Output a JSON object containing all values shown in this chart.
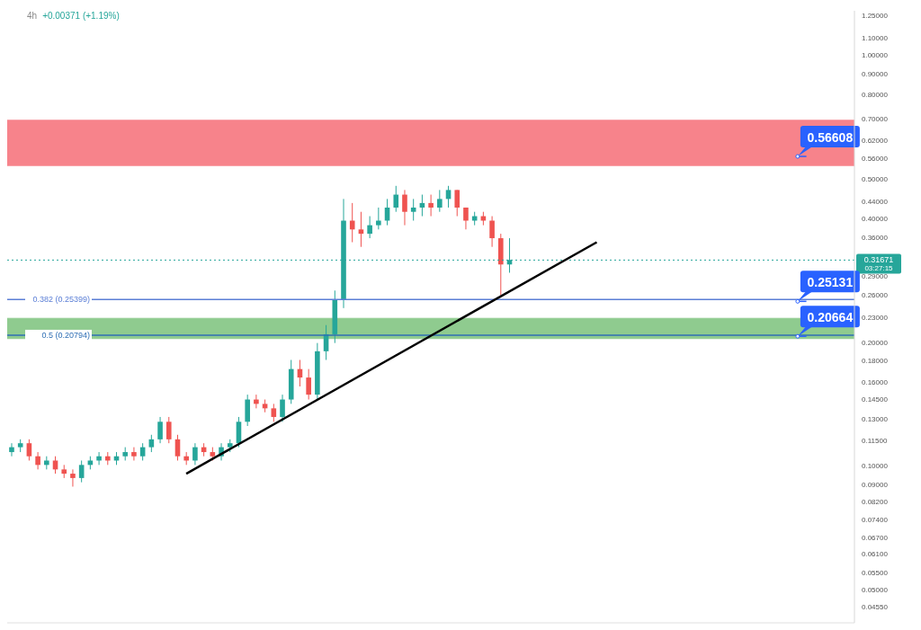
{
  "chart_data": {
    "type": "candlestick",
    "title": "4h",
    "subtitle": "+0.00371 (+1.19%)",
    "categories": [
      null,
      null,
      null,
      null,
      null,
      null,
      null,
      null,
      null,
      null,
      null,
      null,
      null,
      null,
      null,
      null,
      null,
      null,
      null,
      null,
      null,
      null,
      null,
      null,
      null,
      null,
      null,
      null,
      null,
      null,
      null,
      null,
      null,
      null,
      null,
      null,
      null,
      null,
      null,
      null,
      null,
      null,
      null,
      null,
      null,
      null,
      null,
      null,
      null,
      null,
      null,
      null,
      null,
      null,
      null,
      null,
      null,
      null,
      null,
      null,
      null,
      null,
      null,
      null,
      null,
      null,
      null,
      null,
      null,
      null,
      null,
      null,
      null,
      null,
      null,
      null,
      null,
      null,
      null,
      null,
      null,
      null,
      null,
      null,
      null,
      null,
      null,
      null,
      null,
      null,
      null,
      null,
      null,
      null,
      null,
      null,
      null
    ],
    "ohlc": [
      [
        0.108,
        0.1135,
        0.1055,
        0.111
      ],
      [
        0.111,
        0.116,
        0.108,
        0.1135
      ],
      [
        0.1135,
        0.116,
        0.103,
        0.1055
      ],
      [
        0.1055,
        0.108,
        0.098,
        0.1005
      ],
      [
        0.1005,
        0.1055,
        0.098,
        0.103
      ],
      [
        0.103,
        0.1055,
        0.0957,
        0.098
      ],
      [
        0.098,
        0.1005,
        0.0934,
        0.0957
      ],
      [
        0.0957,
        0.098,
        0.089,
        0.0934
      ],
      [
        0.0934,
        0.103,
        0.0912,
        0.1005
      ],
      [
        0.1005,
        0.1055,
        0.098,
        0.103
      ],
      [
        0.103,
        0.108,
        0.1005,
        0.1055
      ],
      [
        0.1055,
        0.108,
        0.1005,
        0.103
      ],
      [
        0.103,
        0.108,
        0.1005,
        0.1055
      ],
      [
        0.1055,
        0.111,
        0.103,
        0.108
      ],
      [
        0.108,
        0.111,
        0.103,
        0.1055
      ],
      [
        0.1055,
        0.1135,
        0.103,
        0.111
      ],
      [
        0.111,
        0.119,
        0.108,
        0.116
      ],
      [
        0.116,
        0.1315,
        0.1135,
        0.128
      ],
      [
        0.128,
        0.1315,
        0.1135,
        0.116
      ],
      [
        0.116,
        0.119,
        0.103,
        0.1055
      ],
      [
        0.1055,
        0.108,
        0.1005,
        0.103
      ],
      [
        0.103,
        0.1135,
        0.1005,
        0.111
      ],
      [
        0.111,
        0.1135,
        0.1055,
        0.108
      ],
      [
        0.108,
        0.111,
        0.103,
        0.1055
      ],
      [
        0.1055,
        0.1135,
        0.103,
        0.111
      ],
      [
        0.111,
        0.116,
        0.108,
        0.1135
      ],
      [
        0.1135,
        0.1315,
        0.111,
        0.128
      ],
      [
        0.128,
        0.149,
        0.125,
        0.145
      ],
      [
        0.145,
        0.149,
        0.138,
        0.1415
      ],
      [
        0.1415,
        0.145,
        0.135,
        0.138
      ],
      [
        0.138,
        0.1415,
        0.128,
        0.1315
      ],
      [
        0.1315,
        0.149,
        0.128,
        0.145
      ],
      [
        0.145,
        0.181,
        0.1415,
        0.172
      ],
      [
        0.172,
        0.181,
        0.156,
        0.164
      ],
      [
        0.164,
        0.172,
        0.145,
        0.149
      ],
      [
        0.149,
        0.199,
        0.145,
        0.19
      ],
      [
        0.19,
        0.22,
        0.181,
        0.209
      ],
      [
        0.209,
        0.267,
        0.199,
        0.254
      ],
      [
        0.254,
        0.446,
        0.242,
        0.395
      ],
      [
        0.395,
        0.436,
        0.35,
        0.376
      ],
      [
        0.376,
        0.415,
        0.341,
        0.367
      ],
      [
        0.367,
        0.405,
        0.358,
        0.385
      ],
      [
        0.385,
        0.425,
        0.376,
        0.395
      ],
      [
        0.395,
        0.446,
        0.385,
        0.425
      ],
      [
        0.425,
        0.48,
        0.415,
        0.457
      ],
      [
        0.457,
        0.469,
        0.385,
        0.415
      ],
      [
        0.415,
        0.446,
        0.395,
        0.425
      ],
      [
        0.425,
        0.457,
        0.405,
        0.436
      ],
      [
        0.436,
        0.457,
        0.405,
        0.425
      ],
      [
        0.425,
        0.469,
        0.415,
        0.446
      ],
      [
        0.446,
        0.48,
        0.425,
        0.469
      ],
      [
        0.469,
        0.469,
        0.405,
        0.425
      ],
      [
        0.425,
        0.425,
        0.376,
        0.395
      ],
      [
        0.395,
        0.415,
        0.385,
        0.405
      ],
      [
        0.405,
        0.415,
        0.385,
        0.395
      ],
      [
        0.395,
        0.405,
        0.341,
        0.358
      ],
      [
        0.358,
        0.367,
        0.26,
        0.309
      ],
      [
        0.309,
        0.358,
        0.295,
        0.317
      ],
      null,
      null,
      null,
      null,
      null,
      null,
      null,
      null,
      null,
      null,
      null,
      null,
      null,
      null,
      null,
      null,
      null,
      null,
      null,
      null,
      null,
      null,
      null,
      null,
      null,
      null,
      null,
      null,
      null,
      null,
      null,
      null,
      null,
      null,
      null,
      null,
      null,
      null,
      null
    ],
    "series": [
      {
        "type": "line",
        "color": "#000000",
        "values": [
          null,
          null,
          null,
          null,
          null,
          null,
          null,
          null,
          null,
          null,
          null,
          null,
          null,
          null,
          null,
          null,
          null,
          null,
          null,
          null,
          0.0957,
          null,
          null,
          null,
          null,
          null,
          null,
          null,
          null,
          null,
          null,
          null,
          null,
          null,
          null,
          null,
          null,
          null,
          null,
          null,
          null,
          null,
          null,
          null,
          null,
          null,
          null,
          null,
          null,
          null,
          null,
          null,
          null,
          null,
          null,
          null,
          null,
          null,
          null,
          null,
          null,
          null,
          null,
          null,
          null,
          null,
          null,
          0.35,
          null,
          null,
          null,
          null,
          null,
          null,
          null,
          null,
          null,
          null,
          null,
          null,
          null,
          null,
          null,
          null,
          null,
          null,
          null,
          null,
          null,
          null,
          null,
          null,
          null,
          null,
          null,
          null,
          null
        ]
      }
    ],
    "log": true,
    "ylim": [
      0.0415,
      1.28
    ],
    "yticks": [
      {
        "value": 1.25,
        "label": "1.25000"
      },
      {
        "value": 1.1,
        "label": "1.10000"
      },
      {
        "value": 1,
        "label": "1.00000"
      },
      {
        "value": 0.9,
        "label": "0.90000"
      },
      {
        "value": 0.8,
        "label": "0.80000"
      },
      {
        "value": 0.7,
        "label": "0.70000"
      },
      {
        "value": 0.62,
        "label": "0.62000"
      },
      {
        "value": 0.56,
        "label": "0.56000"
      },
      {
        "value": 0.5,
        "label": "0.50000"
      },
      {
        "value": 0.44,
        "label": "0.44000"
      },
      {
        "value": 0.4,
        "label": "0.40000"
      },
      {
        "value": 0.36,
        "label": "0.36000"
      },
      {
        "value": 0.29,
        "label": "0.29000"
      },
      {
        "value": 0.26,
        "label": "0.26000"
      },
      {
        "value": 0.23,
        "label": "0.23000"
      },
      {
        "value": 0.2,
        "label": "0.20000"
      },
      {
        "value": 0.18,
        "label": "0.18000"
      },
      {
        "value": 0.16,
        "label": "0.16000"
      },
      {
        "value": 0.145,
        "label": "0.14500"
      },
      {
        "value": 0.13,
        "label": "0.13000"
      },
      {
        "value": 0.115,
        "label": "0.11500"
      },
      {
        "value": 0.1,
        "label": "0.10000"
      },
      {
        "value": 0.09,
        "label": "0.09000"
      },
      {
        "value": 0.082,
        "label": "0.08200"
      },
      {
        "value": 0.074,
        "label": "0.07400"
      },
      {
        "value": 0.067,
        "label": "0.06700"
      },
      {
        "value": 0.061,
        "label": "0.06100"
      },
      {
        "value": 0.055,
        "label": "0.05500"
      },
      {
        "value": 0.05,
        "label": "0.05000"
      },
      {
        "value": 0.0455,
        "label": "0.04550"
      }
    ],
    "tick_labels": "y",
    "bands": [
      {
        "axis": "y",
        "from": 0.538,
        "to": 0.693,
        "color": "#f7838b"
      },
      {
        "axis": "y",
        "from": 0.204,
        "to": 0.2285,
        "color": "#8fcb8f"
      }
    ],
    "ref_lines": [
      {
        "axis": "y",
        "value": 0.25399,
        "label": "0.382 (0.25399)",
        "color": "#5b7fd6"
      },
      {
        "axis": "y",
        "value": 0.20794,
        "label": "0.5 (0.20794)",
        "color": "#2f6fb5"
      },
      {
        "axis": "y",
        "value": 0.31671,
        "label": "0.31671",
        "color": "#26a69a",
        "line_style": "dotted"
      },
      {
        "axis": "y",
        "value": 0.56608,
        "label": "0.56608"
      },
      {
        "axis": "y",
        "value": 0.25131,
        "label": "0.25131"
      },
      {
        "axis": "y",
        "value": 0.20664,
        "label": "0.20664"
      }
    ],
    "annotations": [
      "03:27:15"
    ]
  }
}
